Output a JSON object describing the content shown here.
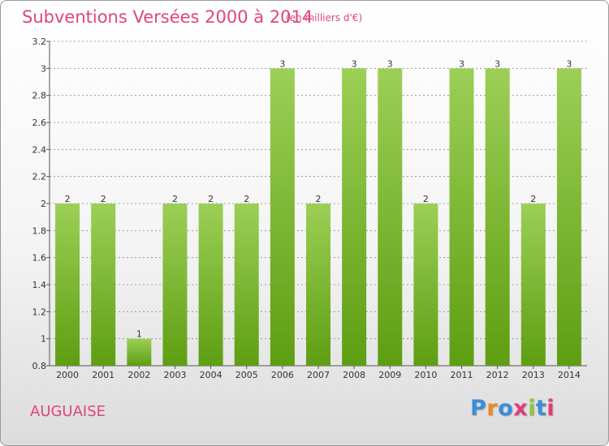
{
  "header": {
    "title": "Subventions Versées 2000 à 2014",
    "unit_note": "(en milliers d'€)"
  },
  "footer": {
    "town": "AUGUAISE",
    "logo_text": "Proxiti"
  },
  "colors": {
    "title": "#e0457b",
    "bar_top": "#9ccf56",
    "bar_bottom": "#5e9e12",
    "grid": "#888888",
    "logo": [
      "#3a8fd9",
      "#f08a1e",
      "#3a8fd9",
      "#e23b7a",
      "#8cc63f",
      "#3a8fd9",
      "#e23b7a"
    ]
  },
  "chart_data": {
    "type": "bar",
    "title": "Subventions Versées 2000 à 2014",
    "subtitle": "(en milliers d'€)",
    "categories": [
      "2000",
      "2001",
      "2002",
      "2003",
      "2004",
      "2005",
      "2006",
      "2007",
      "2008",
      "2009",
      "2010",
      "2011",
      "2012",
      "2013",
      "2014"
    ],
    "values": [
      2,
      2,
      1,
      2,
      2,
      2,
      3,
      2,
      3,
      3,
      2,
      3,
      3,
      2,
      3
    ],
    "ylim": [
      0.8,
      3.2
    ],
    "yticks": [
      "0.8",
      "1",
      "1.2",
      "1.4",
      "1.6",
      "1.8",
      "2",
      "2.2",
      "2.4",
      "2.6",
      "2.8",
      "3",
      "3.2"
    ],
    "xlabel": "",
    "ylabel": "",
    "data_labels": true,
    "grid": "dashed-horizontal"
  }
}
